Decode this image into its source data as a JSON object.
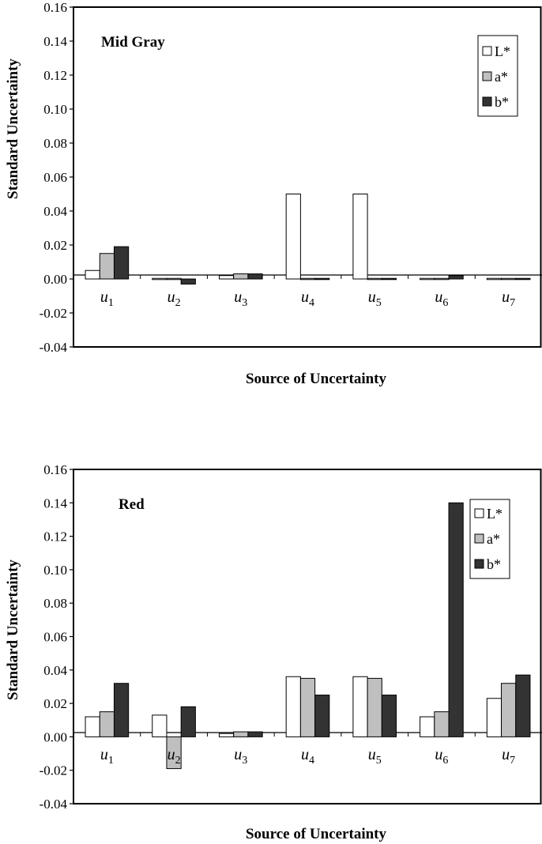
{
  "chart_data": [
    {
      "type": "bar",
      "title": "Mid Gray",
      "xlabel": "Source of Uncertainty",
      "ylabel": "Standard Uncertainty",
      "ylim": [
        -0.04,
        0.16
      ],
      "yticks": [
        "0.16",
        "0.14",
        "0.12",
        "0.10",
        "0.08",
        "0.06",
        "0.04",
        "0.02",
        "0.00",
        "-0.02",
        "-0.04"
      ],
      "categories": [
        "u1",
        "u2",
        "u3",
        "u4",
        "u5",
        "u6",
        "u7"
      ],
      "series": [
        {
          "name": "L*",
          "color": "#ffffff",
          "values": [
            0.005,
            0.0,
            0.002,
            0.05,
            0.05,
            0.0,
            0.0
          ]
        },
        {
          "name": "a*",
          "color": "#bfbfbf",
          "values": [
            0.015,
            0.0,
            0.003,
            0.0,
            0.0,
            0.0,
            0.0
          ]
        },
        {
          "name": "b*",
          "color": "#333333",
          "values": [
            0.019,
            -0.003,
            0.003,
            0.0,
            0.0,
            0.002,
            0.0
          ]
        }
      ],
      "legend_position": "top-right",
      "grid": false
    },
    {
      "type": "bar",
      "title": "Red",
      "xlabel": "Source of Uncertainty",
      "ylabel": "Standard Uncertainty",
      "ylim": [
        -0.04,
        0.16
      ],
      "yticks": [
        "0.16",
        "0.14",
        "0.12",
        "0.10",
        "0.08",
        "0.06",
        "0.04",
        "0.02",
        "0.00",
        "-0.02",
        "-0.04"
      ],
      "categories": [
        "u1",
        "u2",
        "u3",
        "u4",
        "u5",
        "u6",
        "u7"
      ],
      "series": [
        {
          "name": "L*",
          "color": "#ffffff",
          "values": [
            0.012,
            0.013,
            0.002,
            0.036,
            0.036,
            0.012,
            0.023
          ]
        },
        {
          "name": "a*",
          "color": "#bfbfbf",
          "values": [
            0.015,
            -0.019,
            0.003,
            0.035,
            0.035,
            0.015,
            0.032
          ]
        },
        {
          "name": "b*",
          "color": "#333333",
          "values": [
            0.032,
            0.018,
            0.003,
            0.025,
            0.025,
            0.14,
            0.037
          ]
        }
      ],
      "legend_position": "top-right",
      "grid": false
    }
  ]
}
